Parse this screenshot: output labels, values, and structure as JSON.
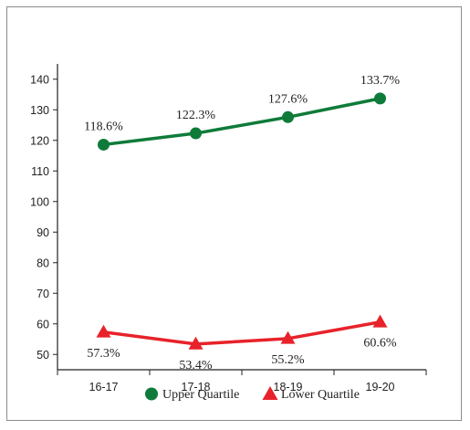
{
  "chart_data": {
    "type": "line",
    "categories": [
      "16-17",
      "17-18",
      "18-19",
      "19-20"
    ],
    "ylim": [
      45,
      145
    ],
    "yticks": [
      50,
      60,
      70,
      80,
      90,
      100,
      110,
      120,
      130,
      140
    ],
    "grid": false,
    "legend_position": "bottom",
    "series": [
      {
        "name": "Upper Quartile",
        "values": [
          118.6,
          122.3,
          127.6,
          133.7
        ],
        "labels": [
          "118.6%",
          "122.3%",
          "127.6%",
          "133.7%"
        ],
        "color": "#0f7b3a",
        "marker": "circle",
        "label_position": "above"
      },
      {
        "name": "Lower Quartile",
        "values": [
          57.3,
          53.4,
          55.2,
          60.6
        ],
        "labels": [
          "57.3%",
          "53.4%",
          "55.2%",
          "60.6%"
        ],
        "color": "#e8222a",
        "marker": "triangle",
        "label_position": "below"
      }
    ]
  }
}
